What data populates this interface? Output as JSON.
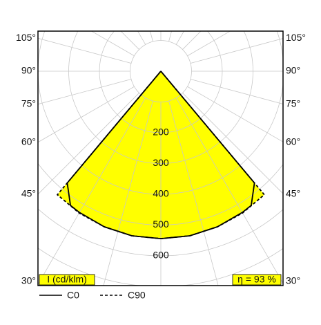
{
  "chart_data": {
    "type": "polar",
    "unit_label": "I (cd/klm)",
    "efficiency_label": "η = 93 %",
    "rlim": [
      0,
      800
    ],
    "rgrid": [
      100,
      200,
      300,
      400,
      500,
      600,
      700,
      800
    ],
    "rticks": [
      200,
      300,
      400,
      500,
      600
    ],
    "angle_grid": [
      0,
      15,
      30,
      45,
      60,
      75,
      90,
      105,
      120,
      135,
      150,
      165,
      180,
      195,
      210,
      225,
      240,
      255,
      270,
      285,
      300,
      315,
      330,
      345
    ],
    "angle_ticks": [
      {
        "value": 30,
        "label": "30°"
      },
      {
        "value": 45,
        "label": "45°"
      },
      {
        "value": 60,
        "label": "60°"
      },
      {
        "value": 75,
        "label": "75°"
      },
      {
        "value": 90,
        "label": "90°"
      },
      {
        "value": 105,
        "label": "105°"
      }
    ],
    "fill_color": "#ffff00",
    "series": [
      {
        "name": "C0",
        "color": "#000000",
        "dash": false,
        "x": [
          -40.5,
          -40,
          -34,
          -30,
          -20,
          -10,
          0,
          10,
          20,
          30,
          34,
          40,
          40.5
        ],
        "values": [
          0,
          474,
          526,
          530,
          538,
          543,
          544,
          543,
          538,
          530,
          526,
          474,
          0
        ]
      },
      {
        "name": "C90",
        "color": "#000000",
        "dash": true,
        "x": [
          -40.5,
          -40,
          -30,
          -20,
          -10,
          0,
          10,
          20,
          30,
          40,
          40.5
        ],
        "values": [
          0,
          524,
          532,
          538,
          543,
          544,
          543,
          538,
          532,
          524,
          0
        ]
      }
    ]
  }
}
